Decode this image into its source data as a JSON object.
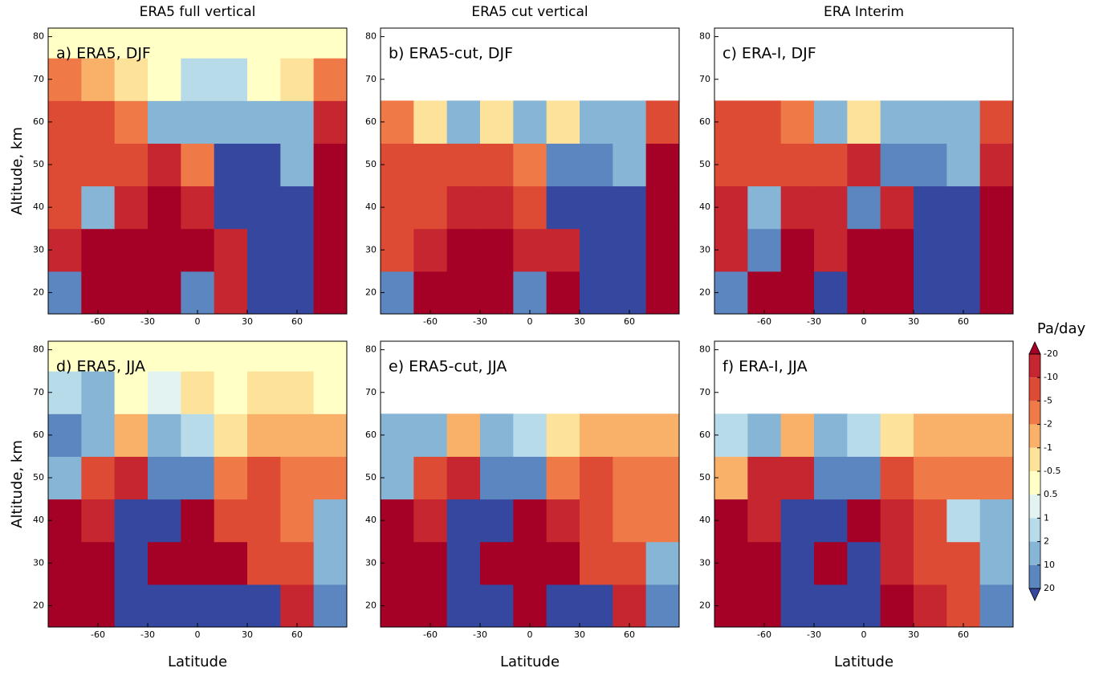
{
  "column_titles": [
    "ERA5 full vertical",
    "ERA5 cut vertical",
    "ERA Interim"
  ],
  "colorbar": {
    "label": "Pa/day",
    "levels": [
      -20,
      -10,
      -5,
      -2,
      -1,
      -0.5,
      0.5,
      1,
      2,
      10,
      20
    ],
    "colors": [
      "#a50026",
      "#c62630",
      "#de4b34",
      "#f07a47",
      "#f9b16a",
      "#fde29a",
      "#ffffc6",
      "#e2f3f2",
      "#b8dbe9",
      "#86b5d6",
      "#5b86c0",
      "#3647a0"
    ]
  },
  "chart_data": [
    {
      "type": "heatmap",
      "title": "a) ERA5, DJF",
      "ylabel": "Altitude, km",
      "xbins": [
        -90,
        -70,
        -50,
        -30,
        -10,
        10,
        30,
        50,
        70,
        90
      ],
      "ybins": [
        15,
        25,
        35,
        45,
        55,
        65,
        75,
        82
      ],
      "xlim": [
        -90,
        90
      ],
      "ylim": [
        15,
        82
      ],
      "xticks": [
        -60,
        -30,
        0,
        30,
        60
      ],
      "yticks": [
        20,
        30,
        40,
        50,
        60,
        70,
        80
      ],
      "values": [
        [
          15,
          -25,
          -25,
          -25,
          10,
          -15,
          25,
          25,
          -25
        ],
        [
          -15,
          -25,
          -25,
          -25,
          -25,
          -15,
          25,
          25,
          -25
        ],
        [
          -10,
          2,
          -15,
          -25,
          -15,
          25,
          25,
          25,
          -25
        ],
        [
          -8,
          -8,
          -8,
          -15,
          -5,
          25,
          25,
          5,
          -25
        ],
        [
          -6,
          -6,
          -5,
          3,
          3,
          2,
          3,
          5,
          -15
        ],
        [
          -3,
          -2,
          -1,
          0,
          1.5,
          1.5,
          0,
          -1,
          -3
        ],
        [
          0,
          0,
          0,
          0,
          0,
          0,
          0,
          0,
          0
        ]
      ]
    },
    {
      "type": "heatmap",
      "title": "b) ERA5-cut, DJF",
      "xbins": [
        -90,
        -70,
        -50,
        -30,
        -10,
        10,
        30,
        50,
        70,
        90
      ],
      "ybins": [
        15,
        25,
        35,
        45,
        55,
        65,
        75,
        82
      ],
      "xlim": [
        -90,
        90
      ],
      "ylim": [
        15,
        82
      ],
      "xticks": [
        -60,
        -30,
        0,
        30,
        60
      ],
      "yticks": [
        20,
        30,
        40,
        50,
        60,
        70,
        80
      ],
      "values": [
        [
          12,
          -25,
          -25,
          -25,
          12,
          -25,
          25,
          25,
          -25
        ],
        [
          -8,
          -15,
          -25,
          -25,
          -15,
          -20,
          25,
          25,
          -25
        ],
        [
          -8,
          -10,
          -15,
          -15,
          -10,
          25,
          25,
          25,
          -25
        ],
        [
          -6,
          -6,
          -8,
          -10,
          -5,
          12,
          12,
          3,
          -25
        ],
        [
          -3,
          -1,
          2,
          -0.8,
          2,
          -1,
          2,
          2,
          -10
        ],
        [
          null,
          null,
          null,
          null,
          null,
          null,
          null,
          null,
          null
        ],
        [
          null,
          null,
          null,
          null,
          null,
          null,
          null,
          null,
          null
        ]
      ]
    },
    {
      "type": "heatmap",
      "title": "c) ERA-I, DJF",
      "xbins": [
        -90,
        -70,
        -50,
        -30,
        -10,
        10,
        30,
        50,
        70,
        90
      ],
      "ybins": [
        15,
        25,
        35,
        45,
        55,
        65,
        75,
        82
      ],
      "xlim": [
        -90,
        90
      ],
      "ylim": [
        15,
        82
      ],
      "xticks": [
        -60,
        -30,
        0,
        30,
        60
      ],
      "yticks": [
        20,
        30,
        40,
        50,
        60,
        70,
        80
      ],
      "values": [
        [
          15,
          -25,
          -25,
          25,
          -25,
          -25,
          25,
          25,
          -25
        ],
        [
          -15,
          10,
          -25,
          -15,
          -25,
          -25,
          25,
          25,
          -25
        ],
        [
          -15,
          5,
          -15,
          -15,
          12,
          -15,
          25,
          25,
          -25
        ],
        [
          -10,
          -10,
          -10,
          -10,
          -15,
          12,
          12,
          3,
          -20
        ],
        [
          -6,
          -6,
          -5,
          2,
          -1,
          3,
          2,
          2,
          -8
        ],
        [
          null,
          null,
          null,
          null,
          null,
          null,
          null,
          null,
          null
        ],
        [
          null,
          null,
          null,
          null,
          null,
          null,
          null,
          null,
          null
        ]
      ]
    },
    {
      "type": "heatmap",
      "title": "d) ERA5, JJA",
      "ylabel": "Altitude, km",
      "xlabel": "Latitude",
      "xbins": [
        -90,
        -70,
        -50,
        -30,
        -10,
        10,
        30,
        50,
        70,
        90
      ],
      "ybins": [
        15,
        25,
        35,
        45,
        55,
        65,
        75,
        82
      ],
      "xlim": [
        -90,
        90
      ],
      "ylim": [
        15,
        82
      ],
      "xticks": [
        -60,
        -30,
        0,
        30,
        60
      ],
      "yticks": [
        20,
        30,
        40,
        50,
        60,
        70,
        80
      ],
      "values": [
        [
          -25,
          -25,
          25,
          25,
          25,
          25,
          25,
          -15,
          10
        ],
        [
          -25,
          -25,
          25,
          -25,
          -25,
          -25,
          -10,
          -10,
          5
        ],
        [
          -25,
          -15,
          25,
          25,
          -25,
          -10,
          -10,
          -5,
          2
        ],
        [
          3,
          -8,
          -15,
          12,
          10,
          -5,
          -8,
          -5,
          -3
        ],
        [
          10,
          3,
          -2,
          2,
          1.5,
          -0.8,
          -2,
          -2,
          -1.5
        ],
        [
          1,
          2,
          0,
          0.8,
          -1,
          0,
          -0.8,
          -0.8,
          -0.5
        ],
        [
          0,
          0,
          0,
          0,
          0,
          0,
          0,
          0,
          0
        ]
      ]
    },
    {
      "type": "heatmap",
      "title": "e) ERA5-cut, JJA",
      "xlabel": "Latitude",
      "xbins": [
        -90,
        -70,
        -50,
        -30,
        -10,
        10,
        30,
        50,
        70,
        90
      ],
      "ybins": [
        15,
        25,
        35,
        45,
        55,
        65,
        75,
        82
      ],
      "xlim": [
        -90,
        90
      ],
      "ylim": [
        15,
        82
      ],
      "xticks": [
        -60,
        -30,
        0,
        30,
        60
      ],
      "yticks": [
        20,
        30,
        40,
        50,
        60,
        70,
        80
      ],
      "values": [
        [
          -25,
          -25,
          25,
          25,
          -25,
          25,
          25,
          -15,
          10
        ],
        [
          -25,
          -25,
          25,
          -25,
          -25,
          -25,
          -10,
          -10,
          3
        ],
        [
          -25,
          -15,
          25,
          25,
          -25,
          -15,
          -10,
          -5,
          -5
        ],
        [
          5,
          -10,
          -15,
          12,
          10,
          -5,
          -8,
          -5,
          -3
        ],
        [
          5,
          3,
          -2,
          3,
          1.5,
          -1,
          -2,
          -2,
          -2
        ],
        [
          null,
          null,
          null,
          null,
          null,
          null,
          null,
          null,
          null
        ],
        [
          null,
          null,
          null,
          null,
          null,
          null,
          null,
          null,
          null
        ]
      ]
    },
    {
      "type": "heatmap",
      "title": "f) ERA-I, JJA",
      "xlabel": "Latitude",
      "xbins": [
        -90,
        -70,
        -50,
        -30,
        -10,
        10,
        30,
        50,
        70,
        90
      ],
      "ybins": [
        15,
        25,
        35,
        45,
        55,
        65,
        75,
        82
      ],
      "xlim": [
        -90,
        90
      ],
      "ylim": [
        15,
        82
      ],
      "xticks": [
        -60,
        -30,
        0,
        30,
        60
      ],
      "yticks": [
        20,
        30,
        40,
        50,
        60,
        70,
        80
      ],
      "values": [
        [
          -25,
          -25,
          25,
          25,
          25,
          -25,
          -15,
          -10,
          15
        ],
        [
          -25,
          -25,
          25,
          -25,
          25,
          -15,
          -10,
          -10,
          5
        ],
        [
          -25,
          -15,
          25,
          25,
          -25,
          -15,
          -8,
          1.5,
          5
        ],
        [
          -2,
          -15,
          -15,
          12,
          12,
          -8,
          -5,
          -5,
          -3
        ],
        [
          1.5,
          2,
          -2,
          3,
          1,
          -1,
          -2,
          -2,
          -2
        ],
        [
          null,
          null,
          null,
          null,
          null,
          null,
          null,
          null,
          null
        ],
        [
          null,
          null,
          null,
          null,
          null,
          null,
          null,
          null,
          null
        ]
      ]
    }
  ]
}
